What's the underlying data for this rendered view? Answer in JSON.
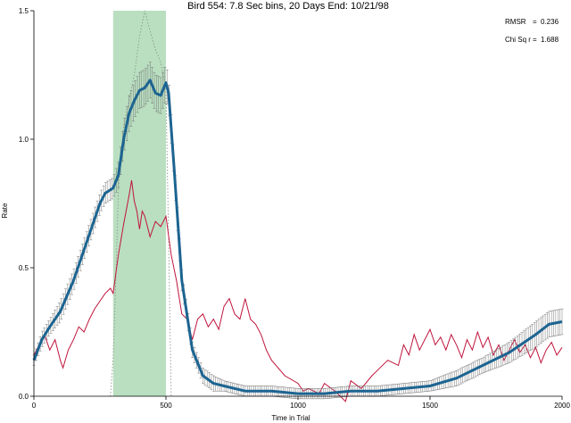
{
  "chart_data": {
    "type": "line",
    "title": "Bird 554: 7.8 Sec bins, 20 Days End: 10/21/98",
    "xlabel": "Time in Trial",
    "ylabel": "Rate",
    "xlim": [
      0,
      2000
    ],
    "ylim": [
      0,
      1.5
    ],
    "xticks": [
      0,
      500,
      1000,
      1500,
      2000
    ],
    "yticks": [
      0.0,
      0.5,
      1.0,
      1.5
    ],
    "xtick_labels": [
      "0",
      "500",
      "1000",
      "1500",
      "2000"
    ],
    "ytick_labels": [
      "0.0",
      "0.5",
      "1.0",
      "1.5"
    ],
    "grid": false,
    "shaded_region": {
      "x": [
        300,
        500
      ],
      "color": "#b9dfc0"
    },
    "stats": [
      {
        "label": "RMSR",
        "eq": "=",
        "value": "0.236"
      },
      {
        "label": "Chi Sq r",
        "eq": "=",
        "value": "1.688"
      }
    ],
    "series": [
      {
        "style": "thick-with-errorbars",
        "color": "#1c6491",
        "x": [
          0,
          30,
          60,
          100,
          150,
          200,
          250,
          270,
          300,
          320,
          340,
          360,
          380,
          400,
          420,
          440,
          460,
          480,
          500,
          510,
          530,
          560,
          600,
          640,
          680,
          720,
          800,
          900,
          1000,
          1100,
          1200,
          1300,
          1400,
          1500,
          1600,
          1700,
          1800,
          1900,
          1950,
          2000
        ],
        "y": [
          0.14,
          0.22,
          0.27,
          0.33,
          0.45,
          0.6,
          0.75,
          0.79,
          0.81,
          0.86,
          1.0,
          1.1,
          1.15,
          1.19,
          1.2,
          1.23,
          1.18,
          1.17,
          1.22,
          1.18,
          0.9,
          0.45,
          0.18,
          0.08,
          0.05,
          0.04,
          0.02,
          0.02,
          0.01,
          0.01,
          0.02,
          0.02,
          0.03,
          0.04,
          0.07,
          0.12,
          0.17,
          0.24,
          0.28,
          0.29
        ],
        "err": [
          0.02,
          0.03,
          0.03,
          0.04,
          0.04,
          0.04,
          0.04,
          0.04,
          0.04,
          0.05,
          0.06,
          0.07,
          0.07,
          0.07,
          0.07,
          0.07,
          0.07,
          0.07,
          0.07,
          0.06,
          0.05,
          0.04,
          0.03,
          0.03,
          0.03,
          0.02,
          0.02,
          0.02,
          0.02,
          0.02,
          0.02,
          0.02,
          0.02,
          0.02,
          0.03,
          0.03,
          0.04,
          0.05,
          0.05,
          0.05
        ]
      },
      {
        "style": "thin-red",
        "color": "#c0143c",
        "x": [
          0,
          20,
          40,
          60,
          80,
          100,
          110,
          130,
          150,
          170,
          190,
          210,
          230,
          250,
          270,
          290,
          300,
          320,
          340,
          360,
          370,
          380,
          390,
          400,
          410,
          420,
          440,
          460,
          480,
          500,
          520,
          540,
          560,
          580,
          600,
          620,
          640,
          660,
          680,
          700,
          720,
          740,
          760,
          780,
          800,
          820,
          840,
          860,
          880,
          900,
          950,
          1000,
          1020,
          1040,
          1080,
          1100,
          1140,
          1180,
          1200,
          1240,
          1280,
          1300,
          1340,
          1380,
          1400,
          1420,
          1440,
          1460,
          1480,
          1500,
          1520,
          1540,
          1560,
          1580,
          1600,
          1620,
          1640,
          1660,
          1680,
          1700,
          1720,
          1740,
          1760,
          1780,
          1800,
          1820,
          1840,
          1860,
          1880,
          1900,
          1920,
          1940,
          1960,
          1980,
          2000
        ],
        "y": [
          0.16,
          0.2,
          0.24,
          0.18,
          0.22,
          0.14,
          0.11,
          0.18,
          0.22,
          0.27,
          0.25,
          0.3,
          0.34,
          0.37,
          0.4,
          0.42,
          0.4,
          0.55,
          0.67,
          0.78,
          0.84,
          0.76,
          0.72,
          0.65,
          0.72,
          0.7,
          0.62,
          0.68,
          0.66,
          0.7,
          0.55,
          0.45,
          0.32,
          0.3,
          0.22,
          0.3,
          0.32,
          0.27,
          0.3,
          0.26,
          0.35,
          0.38,
          0.32,
          0.3,
          0.38,
          0.3,
          0.28,
          0.24,
          0.18,
          0.14,
          0.08,
          0.05,
          0.02,
          0.03,
          0.01,
          0.05,
          0.02,
          -0.02,
          0.06,
          0.03,
          0.08,
          0.1,
          0.14,
          0.12,
          0.2,
          0.16,
          0.24,
          0.18,
          0.22,
          0.26,
          0.2,
          0.23,
          0.18,
          0.24,
          0.2,
          0.15,
          0.22,
          0.18,
          0.25,
          0.19,
          0.23,
          0.16,
          0.2,
          0.14,
          0.18,
          0.22,
          0.17,
          0.2,
          0.15,
          0.19,
          0.13,
          0.18,
          0.21,
          0.16,
          0.19
        ]
      },
      {
        "style": "dotted",
        "color": "#8a9a8a",
        "x": [
          290,
          300,
          310,
          320,
          340,
          360,
          380,
          400,
          420,
          440,
          460,
          480,
          500,
          510,
          520
        ],
        "y": [
          0.0,
          0.15,
          0.45,
          0.8,
          1.05,
          1.15,
          1.25,
          1.4,
          1.5,
          1.42,
          1.35,
          1.3,
          1.2,
          0.6,
          0.0
        ]
      }
    ]
  }
}
